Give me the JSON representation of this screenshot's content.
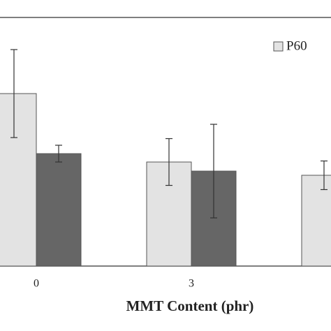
{
  "chart_data": {
    "type": "bar",
    "xlabel": "MMT Content (phr)",
    "categories": [
      "0",
      "3",
      null
    ],
    "series": [
      {
        "name": "P60",
        "color": "#e3e3e3",
        "values": [
          247,
          149,
          130
        ],
        "errors": [
          63,
          33.5,
          20.5
        ]
      },
      {
        "color": "#666666",
        "values": [
          161,
          136,
          null
        ],
        "errors": [
          12,
          67,
          null
        ]
      }
    ],
    "ylim": [
      0,
      356
    ],
    "legend": "upper right"
  }
}
